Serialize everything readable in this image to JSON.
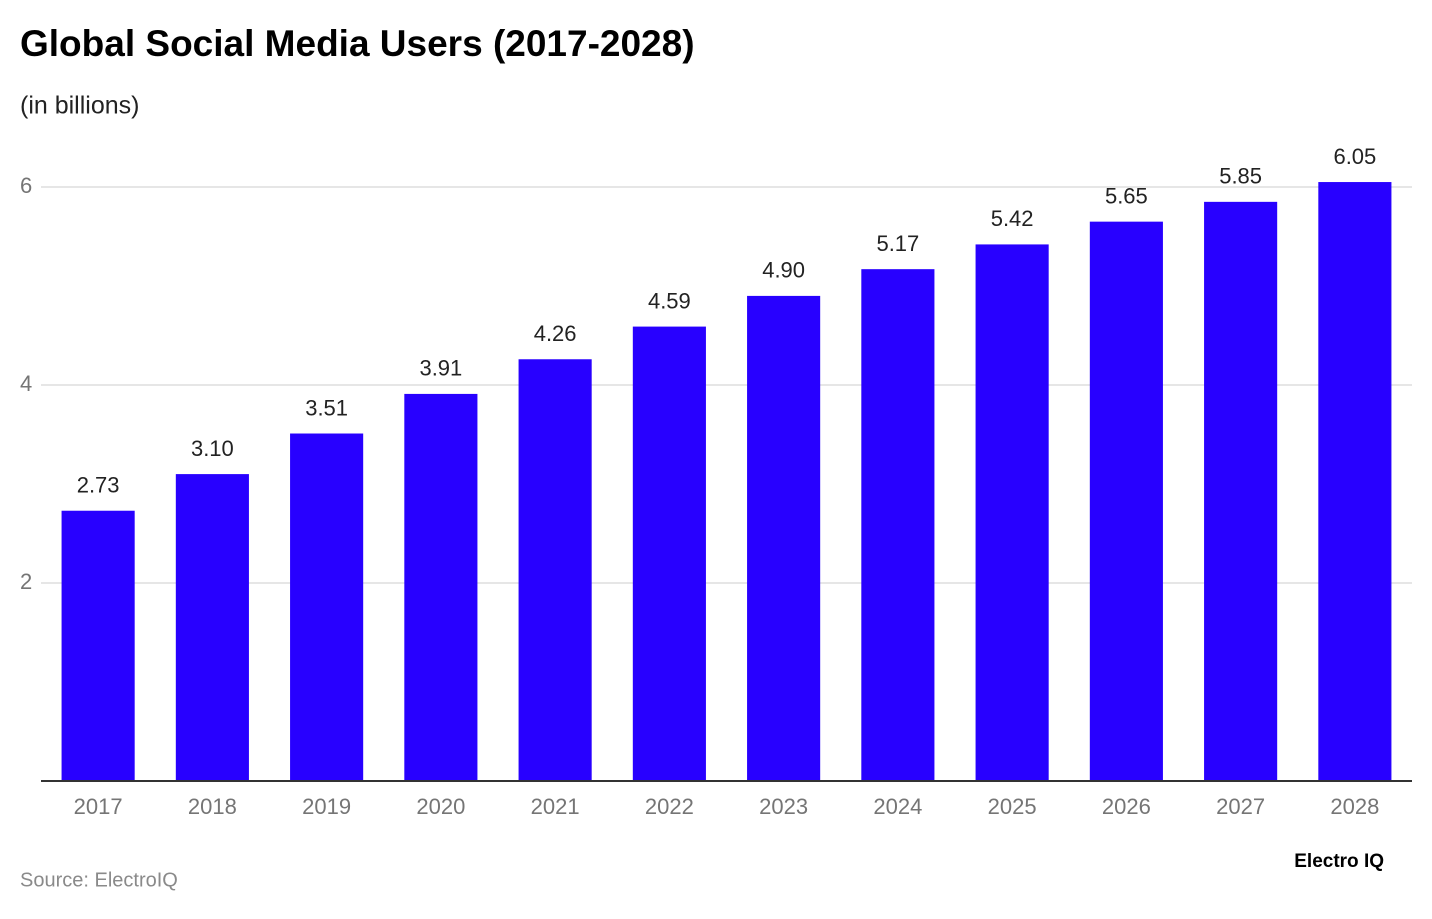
{
  "chart_data": {
    "type": "bar",
    "title": "Global Social Media Users (2017-2028)",
    "subtitle": "(in billions)",
    "categories": [
      "2017",
      "2018",
      "2019",
      "2020",
      "2021",
      "2022",
      "2023",
      "2024",
      "2025",
      "2026",
      "2027",
      "2028"
    ],
    "values": [
      2.73,
      3.1,
      3.51,
      3.91,
      4.26,
      4.59,
      4.9,
      5.17,
      5.42,
      5.65,
      5.85,
      6.05
    ],
    "value_labels": [
      "2.73",
      "3.10",
      "3.51",
      "3.91",
      "4.26",
      "4.59",
      "4.90",
      "5.17",
      "5.42",
      "5.65",
      "5.85",
      "6.05"
    ],
    "color": "#2800ff",
    "ylim": [
      0,
      6.2
    ],
    "yticks": [
      2,
      4,
      6
    ],
    "grid": true,
    "source": "Source: ElectroIQ",
    "brand": "Electro IQ"
  }
}
